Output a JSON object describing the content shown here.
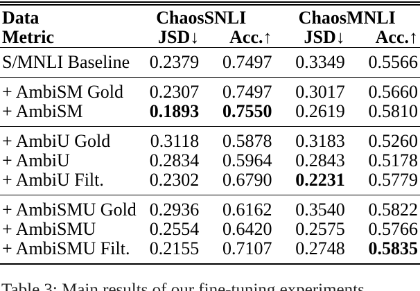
{
  "table": {
    "header": {
      "row1_label": "Data",
      "row2_label": "Metric",
      "groups": [
        "ChaosSNLI",
        "ChaosMNLI"
      ],
      "metrics": [
        "JSD↓",
        "Acc.↑",
        "JSD↓",
        "Acc.↑"
      ]
    },
    "sections": [
      {
        "rows": [
          {
            "label": "S/MNLI Baseline",
            "values": [
              "0.2379",
              "0.7497",
              "0.3349",
              "0.5566"
            ],
            "bold": [
              false,
              false,
              false,
              false
            ]
          }
        ]
      },
      {
        "rows": [
          {
            "label": "+ AmbiSM Gold",
            "values": [
              "0.2307",
              "0.7497",
              "0.3017",
              "0.5660"
            ],
            "bold": [
              false,
              false,
              false,
              false
            ]
          },
          {
            "label": "+ AmbiSM",
            "values": [
              "0.1893",
              "0.7550",
              "0.2619",
              "0.5810"
            ],
            "bold": [
              true,
              true,
              false,
              false
            ]
          }
        ]
      },
      {
        "rows": [
          {
            "label": "+ AmbiU Gold",
            "values": [
              "0.3118",
              "0.5878",
              "0.3183",
              "0.5260"
            ],
            "bold": [
              false,
              false,
              false,
              false
            ]
          },
          {
            "label": "+ AmbiU",
            "values": [
              "0.2834",
              "0.5964",
              "0.2843",
              "0.5178"
            ],
            "bold": [
              false,
              false,
              false,
              false
            ]
          },
          {
            "label": "+ AmbiU Filt.",
            "values": [
              "0.2302",
              "0.6790",
              "0.2231",
              "0.5779"
            ],
            "bold": [
              false,
              false,
              true,
              false
            ]
          }
        ]
      },
      {
        "rows": [
          {
            "label": "+ AmbiSMU Gold",
            "values": [
              "0.2936",
              "0.6162",
              "0.3540",
              "0.5822"
            ],
            "bold": [
              false,
              false,
              false,
              false
            ]
          },
          {
            "label": "+ AmbiSMU",
            "values": [
              "0.2554",
              "0.6420",
              "0.2575",
              "0.5766"
            ],
            "bold": [
              false,
              false,
              false,
              false
            ]
          },
          {
            "label": "+ AmbiSMU Filt.",
            "values": [
              "0.2155",
              "0.7107",
              "0.2748",
              "0.5835"
            ],
            "bold": [
              false,
              false,
              false,
              true
            ]
          }
        ]
      }
    ]
  },
  "caption": "Table 3: Main results of our fine-tuning experiments"
}
